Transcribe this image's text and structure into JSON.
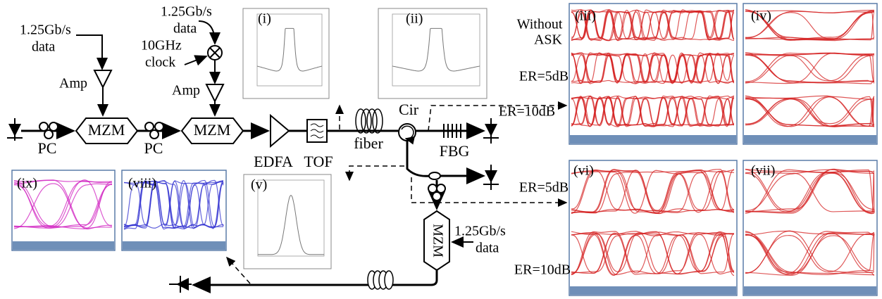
{
  "sources": {
    "data_1": [
      "1.25Gb/s",
      "data"
    ],
    "data_2": [
      "1.25Gb/s",
      "data"
    ],
    "clock": [
      "10GHz",
      "clock"
    ],
    "data_3": [
      "1.25Gb/s",
      "data"
    ]
  },
  "components": {
    "amp_1": "Amp",
    "amp_2": "Amp",
    "mzm_1": "MZM",
    "mzm_2": "MZM",
    "mzm_3": "MZM",
    "pc_1": "PC",
    "pc_2": "PC",
    "edfa": "EDFA",
    "tof": "TOF",
    "fiber": "fiber",
    "cir": "Cir",
    "fbg": "FBG"
  },
  "panels": {
    "i": "(i)",
    "ii": "(ii)",
    "iii": "(iii)",
    "iv": "(iv)",
    "v": "(v)",
    "vi": "(vi)",
    "vii": "(vii)",
    "viii": "(viii)",
    "ix": "(ix)"
  },
  "annotations": {
    "without_ask": [
      "Without",
      "ASK"
    ],
    "er_5db_top": "ER=5dB",
    "er_10db_top": "ER=10dB",
    "er_5db_bottom": "ER=5dB",
    "er_10db_bottom": "ER=10dB"
  }
}
